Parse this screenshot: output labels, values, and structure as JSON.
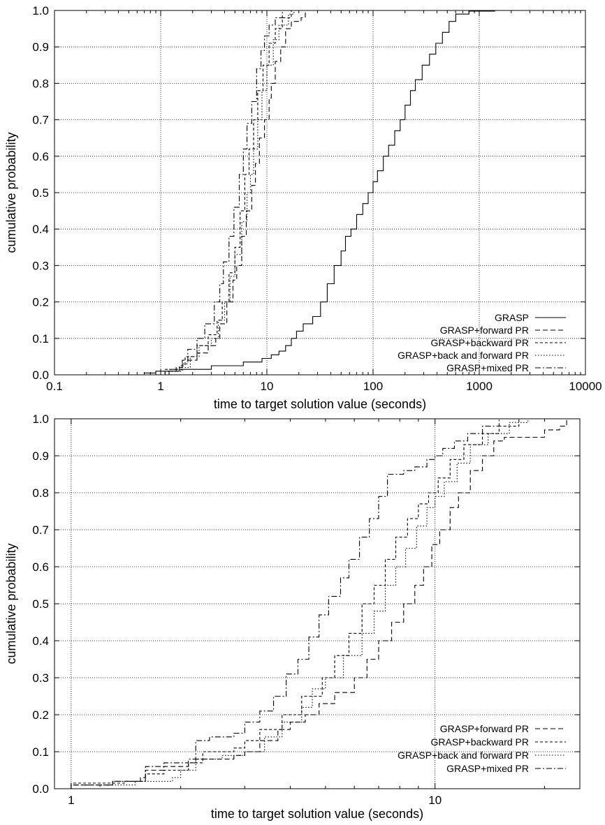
{
  "chart_data": [
    {
      "type": "line",
      "xscale": "log",
      "xlim": [
        0.1,
        10000
      ],
      "ylim": [
        0,
        1
      ],
      "xlabel": "time to target solution value (seconds)",
      "ylabel": "cumulative probability",
      "xticks": [
        0.1,
        1,
        10,
        100,
        1000,
        10000
      ],
      "xtick_labels": [
        "0.1",
        "1",
        "10",
        "100",
        "1000",
        "10000"
      ],
      "yticks": [
        0,
        0.1,
        0.2,
        0.3,
        0.4,
        0.5,
        0.6,
        0.7,
        0.8,
        0.9,
        1.0
      ],
      "ytick_labels": [
        "0.0",
        "0.1",
        "0.2",
        "0.3",
        "0.4",
        "0.5",
        "0.6",
        "0.7",
        "0.8",
        "0.9",
        "1.0"
      ],
      "grid": true,
      "legend_position": "bottom-right",
      "series": [
        {
          "name": "GRASP",
          "dash": "solid",
          "points": [
            [
              0.5,
              0
            ],
            [
              0.7,
              0.005
            ],
            [
              0.9,
              0.01
            ],
            [
              1.5,
              0.015
            ],
            [
              3,
              0.025
            ],
            [
              6,
              0.035
            ],
            [
              9,
              0.045
            ],
            [
              11,
              0.055
            ],
            [
              13,
              0.065
            ],
            [
              15,
              0.08
            ],
            [
              17,
              0.1
            ],
            [
              19,
              0.12
            ],
            [
              22,
              0.14
            ],
            [
              27,
              0.16
            ],
            [
              32,
              0.2
            ],
            [
              37,
              0.25
            ],
            [
              43,
              0.3
            ],
            [
              50,
              0.34
            ],
            [
              55,
              0.38
            ],
            [
              62,
              0.4
            ],
            [
              70,
              0.44
            ],
            [
              80,
              0.47
            ],
            [
              90,
              0.5
            ],
            [
              100,
              0.53
            ],
            [
              110,
              0.56
            ],
            [
              125,
              0.6
            ],
            [
              140,
              0.63
            ],
            [
              160,
              0.67
            ],
            [
              180,
              0.7
            ],
            [
              200,
              0.74
            ],
            [
              225,
              0.78
            ],
            [
              250,
              0.81
            ],
            [
              290,
              0.85
            ],
            [
              340,
              0.88
            ],
            [
              390,
              0.91
            ],
            [
              450,
              0.94
            ],
            [
              520,
              0.97
            ],
            [
              600,
              0.99
            ],
            [
              800,
              0.998
            ],
            [
              1400,
              1.0
            ]
          ]
        },
        {
          "name": "GRASP+forward PR",
          "dash": "dashed",
          "points": [
            [
              0.9,
              0
            ],
            [
              1.1,
              0.01
            ],
            [
              1.4,
              0.02
            ],
            [
              1.6,
              0.04
            ],
            [
              2.2,
              0.06
            ],
            [
              2.8,
              0.08
            ],
            [
              3.3,
              0.1
            ],
            [
              3.6,
              0.14
            ],
            [
              4.2,
              0.2
            ],
            [
              4.8,
              0.26
            ],
            [
              5.2,
              0.3
            ],
            [
              5.8,
              0.38
            ],
            [
              6.4,
              0.45
            ],
            [
              7.2,
              0.52
            ],
            [
              7.8,
              0.58
            ],
            [
              8.5,
              0.65
            ],
            [
              9.5,
              0.7
            ],
            [
              10.5,
              0.76
            ],
            [
              11,
              0.8
            ],
            [
              12,
              0.86
            ],
            [
              13.5,
              0.9
            ],
            [
              15,
              0.95
            ],
            [
              17,
              0.97
            ],
            [
              21,
              0.98
            ],
            [
              23,
              1.0
            ]
          ]
        },
        {
          "name": "GRASP+backward PR",
          "dash": "short-dashed",
          "points": [
            [
              0.9,
              0
            ],
            [
              1.1,
              0.015
            ],
            [
              1.5,
              0.025
            ],
            [
              1.7,
              0.05
            ],
            [
              2.2,
              0.08
            ],
            [
              2.8,
              0.11
            ],
            [
              3.4,
              0.15
            ],
            [
              3.8,
              0.2
            ],
            [
              4.4,
              0.28
            ],
            [
              5,
              0.35
            ],
            [
              5.6,
              0.45
            ],
            [
              6.2,
              0.55
            ],
            [
              6.8,
              0.62
            ],
            [
              7.5,
              0.7
            ],
            [
              8.2,
              0.78
            ],
            [
              9.2,
              0.85
            ],
            [
              10.5,
              0.91
            ],
            [
              12,
              0.95
            ],
            [
              14,
              0.98
            ],
            [
              17,
              1.0
            ]
          ]
        },
        {
          "name": "GRASP+back and forward PR",
          "dash": "dotted",
          "points": [
            [
              0.9,
              0
            ],
            [
              1.2,
              0.01
            ],
            [
              1.6,
              0.02
            ],
            [
              1.9,
              0.05
            ],
            [
              2.3,
              0.08
            ],
            [
              3,
              0.1
            ],
            [
              3.5,
              0.15
            ],
            [
              4,
              0.2
            ],
            [
              4.5,
              0.27
            ],
            [
              5,
              0.33
            ],
            [
              5.8,
              0.42
            ],
            [
              6.5,
              0.5
            ],
            [
              7,
              0.55
            ],
            [
              7.5,
              0.62
            ],
            [
              8.2,
              0.7
            ],
            [
              9,
              0.78
            ],
            [
              10,
              0.85
            ],
            [
              11.5,
              0.92
            ],
            [
              13,
              0.96
            ],
            [
              16,
              0.99
            ],
            [
              18,
              1.0
            ]
          ]
        },
        {
          "name": "GRASP+mixed PR",
          "dash": "dash-dot",
          "points": [
            [
              0.9,
              0
            ],
            [
              1.2,
              0.015
            ],
            [
              1.6,
              0.03
            ],
            [
              1.8,
              0.07
            ],
            [
              2.2,
              0.1
            ],
            [
              2.6,
              0.14
            ],
            [
              3.2,
              0.2
            ],
            [
              3.6,
              0.25
            ],
            [
              3.9,
              0.31
            ],
            [
              4.4,
              0.38
            ],
            [
              4.9,
              0.46
            ],
            [
              5.5,
              0.55
            ],
            [
              6,
              0.62
            ],
            [
              6.5,
              0.69
            ],
            [
              7.2,
              0.75
            ],
            [
              8,
              0.84
            ],
            [
              8.8,
              0.89
            ],
            [
              9.5,
              0.93
            ],
            [
              10.5,
              0.96
            ],
            [
              12,
              0.98
            ],
            [
              14,
              1.0
            ]
          ]
        }
      ]
    },
    {
      "type": "line",
      "xscale": "log",
      "xlim": [
        0.9,
        25
      ],
      "ylim": [
        0,
        1
      ],
      "xlabel": "time to target solution value (seconds)",
      "ylabel": "cumulative probability",
      "xticks": [
        1,
        10
      ],
      "xtick_labels": [
        "1",
        "10"
      ],
      "yticks": [
        0,
        0.1,
        0.2,
        0.3,
        0.4,
        0.5,
        0.6,
        0.7,
        0.8,
        0.9,
        1.0
      ],
      "ytick_labels": [
        "0.0",
        "0.1",
        "0.2",
        "0.3",
        "0.4",
        "0.5",
        "0.6",
        "0.7",
        "0.8",
        "0.9",
        "1.0"
      ],
      "grid": true,
      "legend_position": "bottom-right",
      "series": [
        {
          "name": "GRASP+forward PR",
          "dash": "dashed",
          "points": [
            [
              0.9,
              0
            ],
            [
              1.0,
              0.01
            ],
            [
              1.3,
              0.02
            ],
            [
              1.55,
              0.03
            ],
            [
              1.6,
              0.05
            ],
            [
              1.8,
              0.06
            ],
            [
              2.1,
              0.07
            ],
            [
              2.2,
              0.08
            ],
            [
              2.8,
              0.09
            ],
            [
              3.0,
              0.1
            ],
            [
              3.3,
              0.13
            ],
            [
              3.7,
              0.16
            ],
            [
              4.0,
              0.18
            ],
            [
              4.4,
              0.2
            ],
            [
              4.8,
              0.23
            ],
            [
              5.3,
              0.26
            ],
            [
              6.0,
              0.3
            ],
            [
              6.5,
              0.35
            ],
            [
              7.0,
              0.4
            ],
            [
              7.6,
              0.45
            ],
            [
              8.2,
              0.5
            ],
            [
              8.8,
              0.55
            ],
            [
              9.3,
              0.6
            ],
            [
              9.8,
              0.66
            ],
            [
              10.3,
              0.7
            ],
            [
              11,
              0.76
            ],
            [
              11.6,
              0.8
            ],
            [
              12.5,
              0.86
            ],
            [
              13.5,
              0.9
            ],
            [
              14.5,
              0.94
            ],
            [
              15.5,
              0.95
            ],
            [
              20,
              0.97
            ],
            [
              22,
              0.98
            ],
            [
              23,
              1.0
            ]
          ]
        },
        {
          "name": "GRASP+backward PR",
          "dash": "short-dashed",
          "points": [
            [
              0.9,
              0
            ],
            [
              1.0,
              0.015
            ],
            [
              1.4,
              0.02
            ],
            [
              1.6,
              0.04
            ],
            [
              1.8,
              0.05
            ],
            [
              2.1,
              0.07
            ],
            [
              2.3,
              0.1
            ],
            [
              2.8,
              0.11
            ],
            [
              3.0,
              0.13
            ],
            [
              3.3,
              0.16
            ],
            [
              3.8,
              0.2
            ],
            [
              4.3,
              0.25
            ],
            [
              4.9,
              0.3
            ],
            [
              5.3,
              0.36
            ],
            [
              5.8,
              0.42
            ],
            [
              6.3,
              0.5
            ],
            [
              6.8,
              0.55
            ],
            [
              7.3,
              0.62
            ],
            [
              7.8,
              0.68
            ],
            [
              8.4,
              0.73
            ],
            [
              9.0,
              0.77
            ],
            [
              9.6,
              0.8
            ],
            [
              10.2,
              0.84
            ],
            [
              11,
              0.89
            ],
            [
              12,
              0.93
            ],
            [
              13.5,
              0.96
            ],
            [
              15,
              0.98
            ],
            [
              17,
              1.0
            ]
          ]
        },
        {
          "name": "GRASP+back and forward PR",
          "dash": "dotted",
          "points": [
            [
              1.0,
              0
            ],
            [
              1.2,
              0.01
            ],
            [
              1.5,
              0.02
            ],
            [
              1.9,
              0.03
            ],
            [
              2.0,
              0.05
            ],
            [
              2.2,
              0.08
            ],
            [
              2.6,
              0.09
            ],
            [
              3.0,
              0.1
            ],
            [
              3.4,
              0.14
            ],
            [
              3.8,
              0.18
            ],
            [
              4.3,
              0.22
            ],
            [
              4.6,
              0.27
            ],
            [
              5.0,
              0.3
            ],
            [
              5.6,
              0.36
            ],
            [
              6.3,
              0.42
            ],
            [
              6.8,
              0.48
            ],
            [
              7.3,
              0.55
            ],
            [
              7.8,
              0.6
            ],
            [
              8.3,
              0.65
            ],
            [
              8.9,
              0.71
            ],
            [
              9.5,
              0.76
            ],
            [
              10,
              0.79
            ],
            [
              10.6,
              0.83
            ],
            [
              11.5,
              0.88
            ],
            [
              12.5,
              0.93
            ],
            [
              14,
              0.96
            ],
            [
              16,
              0.99
            ],
            [
              18,
              1.0
            ]
          ]
        },
        {
          "name": "GRASP+mixed PR",
          "dash": "dash-dot",
          "points": [
            [
              0.9,
              0
            ],
            [
              1.0,
              0.01
            ],
            [
              1.3,
              0.02
            ],
            [
              1.6,
              0.06
            ],
            [
              1.8,
              0.07
            ],
            [
              2.1,
              0.08
            ],
            [
              2.2,
              0.13
            ],
            [
              2.4,
              0.14
            ],
            [
              2.8,
              0.15
            ],
            [
              3.0,
              0.18
            ],
            [
              3.3,
              0.21
            ],
            [
              3.6,
              0.25
            ],
            [
              3.9,
              0.31
            ],
            [
              4.2,
              0.35
            ],
            [
              4.5,
              0.41
            ],
            [
              4.8,
              0.47
            ],
            [
              5.1,
              0.52
            ],
            [
              5.5,
              0.57
            ],
            [
              5.8,
              0.62
            ],
            [
              6.2,
              0.68
            ],
            [
              6.6,
              0.73
            ],
            [
              7.0,
              0.79
            ],
            [
              7.4,
              0.85
            ],
            [
              8.2,
              0.86
            ],
            [
              8.8,
              0.87
            ],
            [
              9.5,
              0.89
            ],
            [
              10,
              0.9
            ],
            [
              10.5,
              0.92
            ],
            [
              11.3,
              0.94
            ],
            [
              12.3,
              0.96
            ],
            [
              13.5,
              0.98
            ],
            [
              15,
              1.0
            ]
          ]
        }
      ]
    }
  ]
}
